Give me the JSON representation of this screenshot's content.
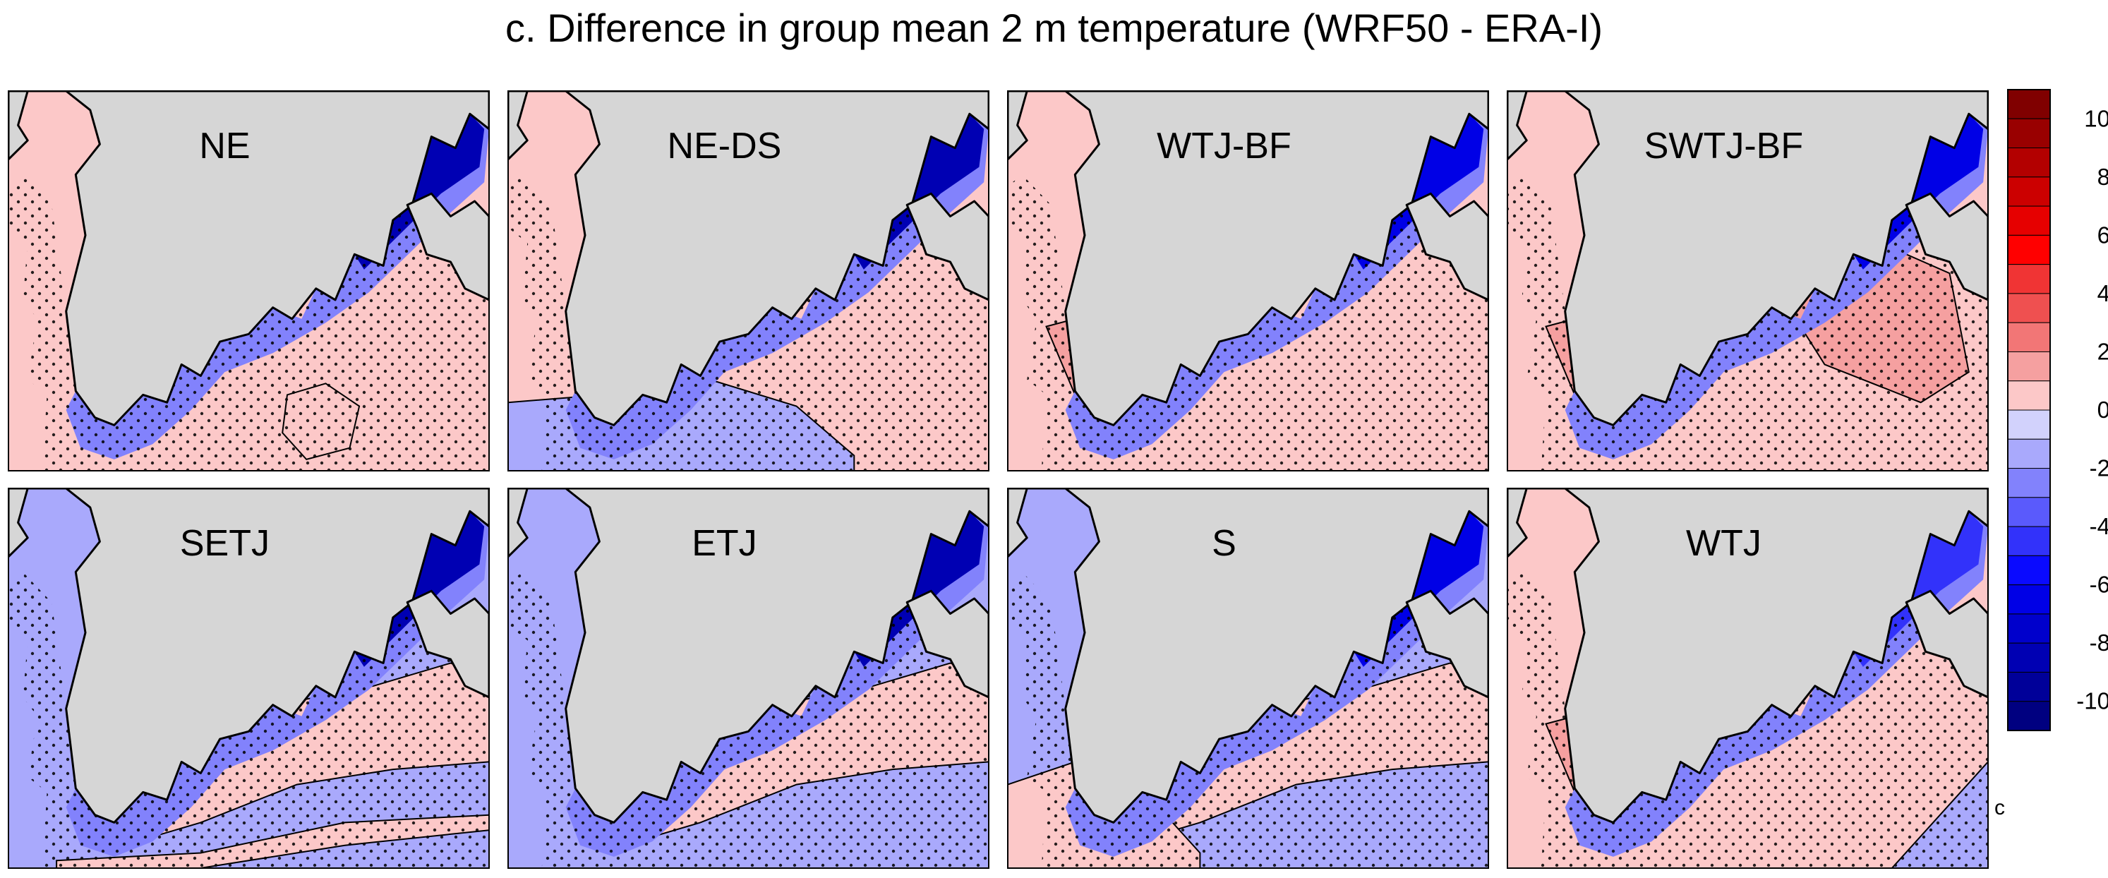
{
  "title": "c. Difference in group mean 2 m temperature (WRF50 - ERA-I)",
  "corner_mark": "c",
  "colors": {
    "land": "#d6d6d6",
    "coast": "#000000",
    "stipple": "#000000"
  },
  "chart_data": {
    "type": "heatmap",
    "title": "c. Difference in group mean 2 m temperature (WRF50 - ERA-I)",
    "layout": "2 rows x 4 columns of map panels",
    "panels": [
      {
        "name": "NE",
        "ocean_level": 1,
        "regions": [
          {
            "level": 2,
            "shape": "blob"
          },
          {
            "level": 1,
            "shape": "ring"
          }
        ],
        "band_min": -8
      },
      {
        "name": "NE-DS",
        "ocean_level": 1,
        "regions": [
          {
            "level": -1,
            "shape": "south-band"
          },
          {
            "level": 3,
            "shape": "spot"
          }
        ],
        "band_min": -8
      },
      {
        "name": "WTJ-BF",
        "ocean_level": 1,
        "regions": [
          {
            "level": 2,
            "shape": "blob"
          },
          {
            "level": 2,
            "shape": "west-blob"
          }
        ],
        "band_min": -6
      },
      {
        "name": "SWTJ-BF",
        "ocean_level": 1,
        "regions": [
          {
            "level": 2,
            "shape": "large-east-blob"
          },
          {
            "level": 2,
            "shape": "west-blob"
          }
        ],
        "band_min": -6
      },
      {
        "name": "SETJ",
        "ocean_level": -1,
        "regions": [
          {
            "level": 1,
            "shape": "north-band"
          },
          {
            "level": 1,
            "shape": "south-strip"
          }
        ],
        "band_min": -8
      },
      {
        "name": "ETJ",
        "ocean_level": -1,
        "regions": [
          {
            "level": 1,
            "shape": "north-band"
          }
        ],
        "band_min": -8
      },
      {
        "name": "S",
        "ocean_level": -1,
        "regions": [
          {
            "level": 1,
            "shape": "north-band"
          },
          {
            "level": 1,
            "shape": "south-west"
          }
        ],
        "band_min": -6
      },
      {
        "name": "WTJ",
        "ocean_level": 1,
        "regions": [
          {
            "level": 2,
            "shape": "west-blob"
          },
          {
            "level": -1,
            "shape": "south-corner"
          }
        ],
        "band_min": -4
      }
    ],
    "colorbar": {
      "tick_labels": [
        "10",
        "8",
        "6",
        "4",
        "2",
        "0",
        "-2",
        "-4",
        "-6",
        "-8",
        "-10"
      ],
      "levels": [
        11,
        10,
        9,
        8,
        7,
        6,
        5,
        4,
        3,
        2,
        1,
        0,
        -1,
        -2,
        -3,
        -4,
        -5,
        -6,
        -7,
        -8,
        -9,
        -10,
        -11
      ],
      "colors": [
        "#800000",
        "#990000",
        "#b30000",
        "#cc0000",
        "#e60000",
        "#ff0000",
        "#f03434",
        "#ef5050",
        "#f27676",
        "#f5a0a0",
        "#fcc8c8",
        "#d2d2fc",
        "#a9a9fc",
        "#8282fc",
        "#5a5afc",
        "#3232fa",
        "#0a0aff",
        "#0000e6",
        "#0000cc",
        "#0000b3",
        "#000099",
        "#000080"
      ],
      "range": [
        -11,
        11
      ]
    },
    "stippling": "dots mark statistically significant differences",
    "legend_position": "right"
  }
}
